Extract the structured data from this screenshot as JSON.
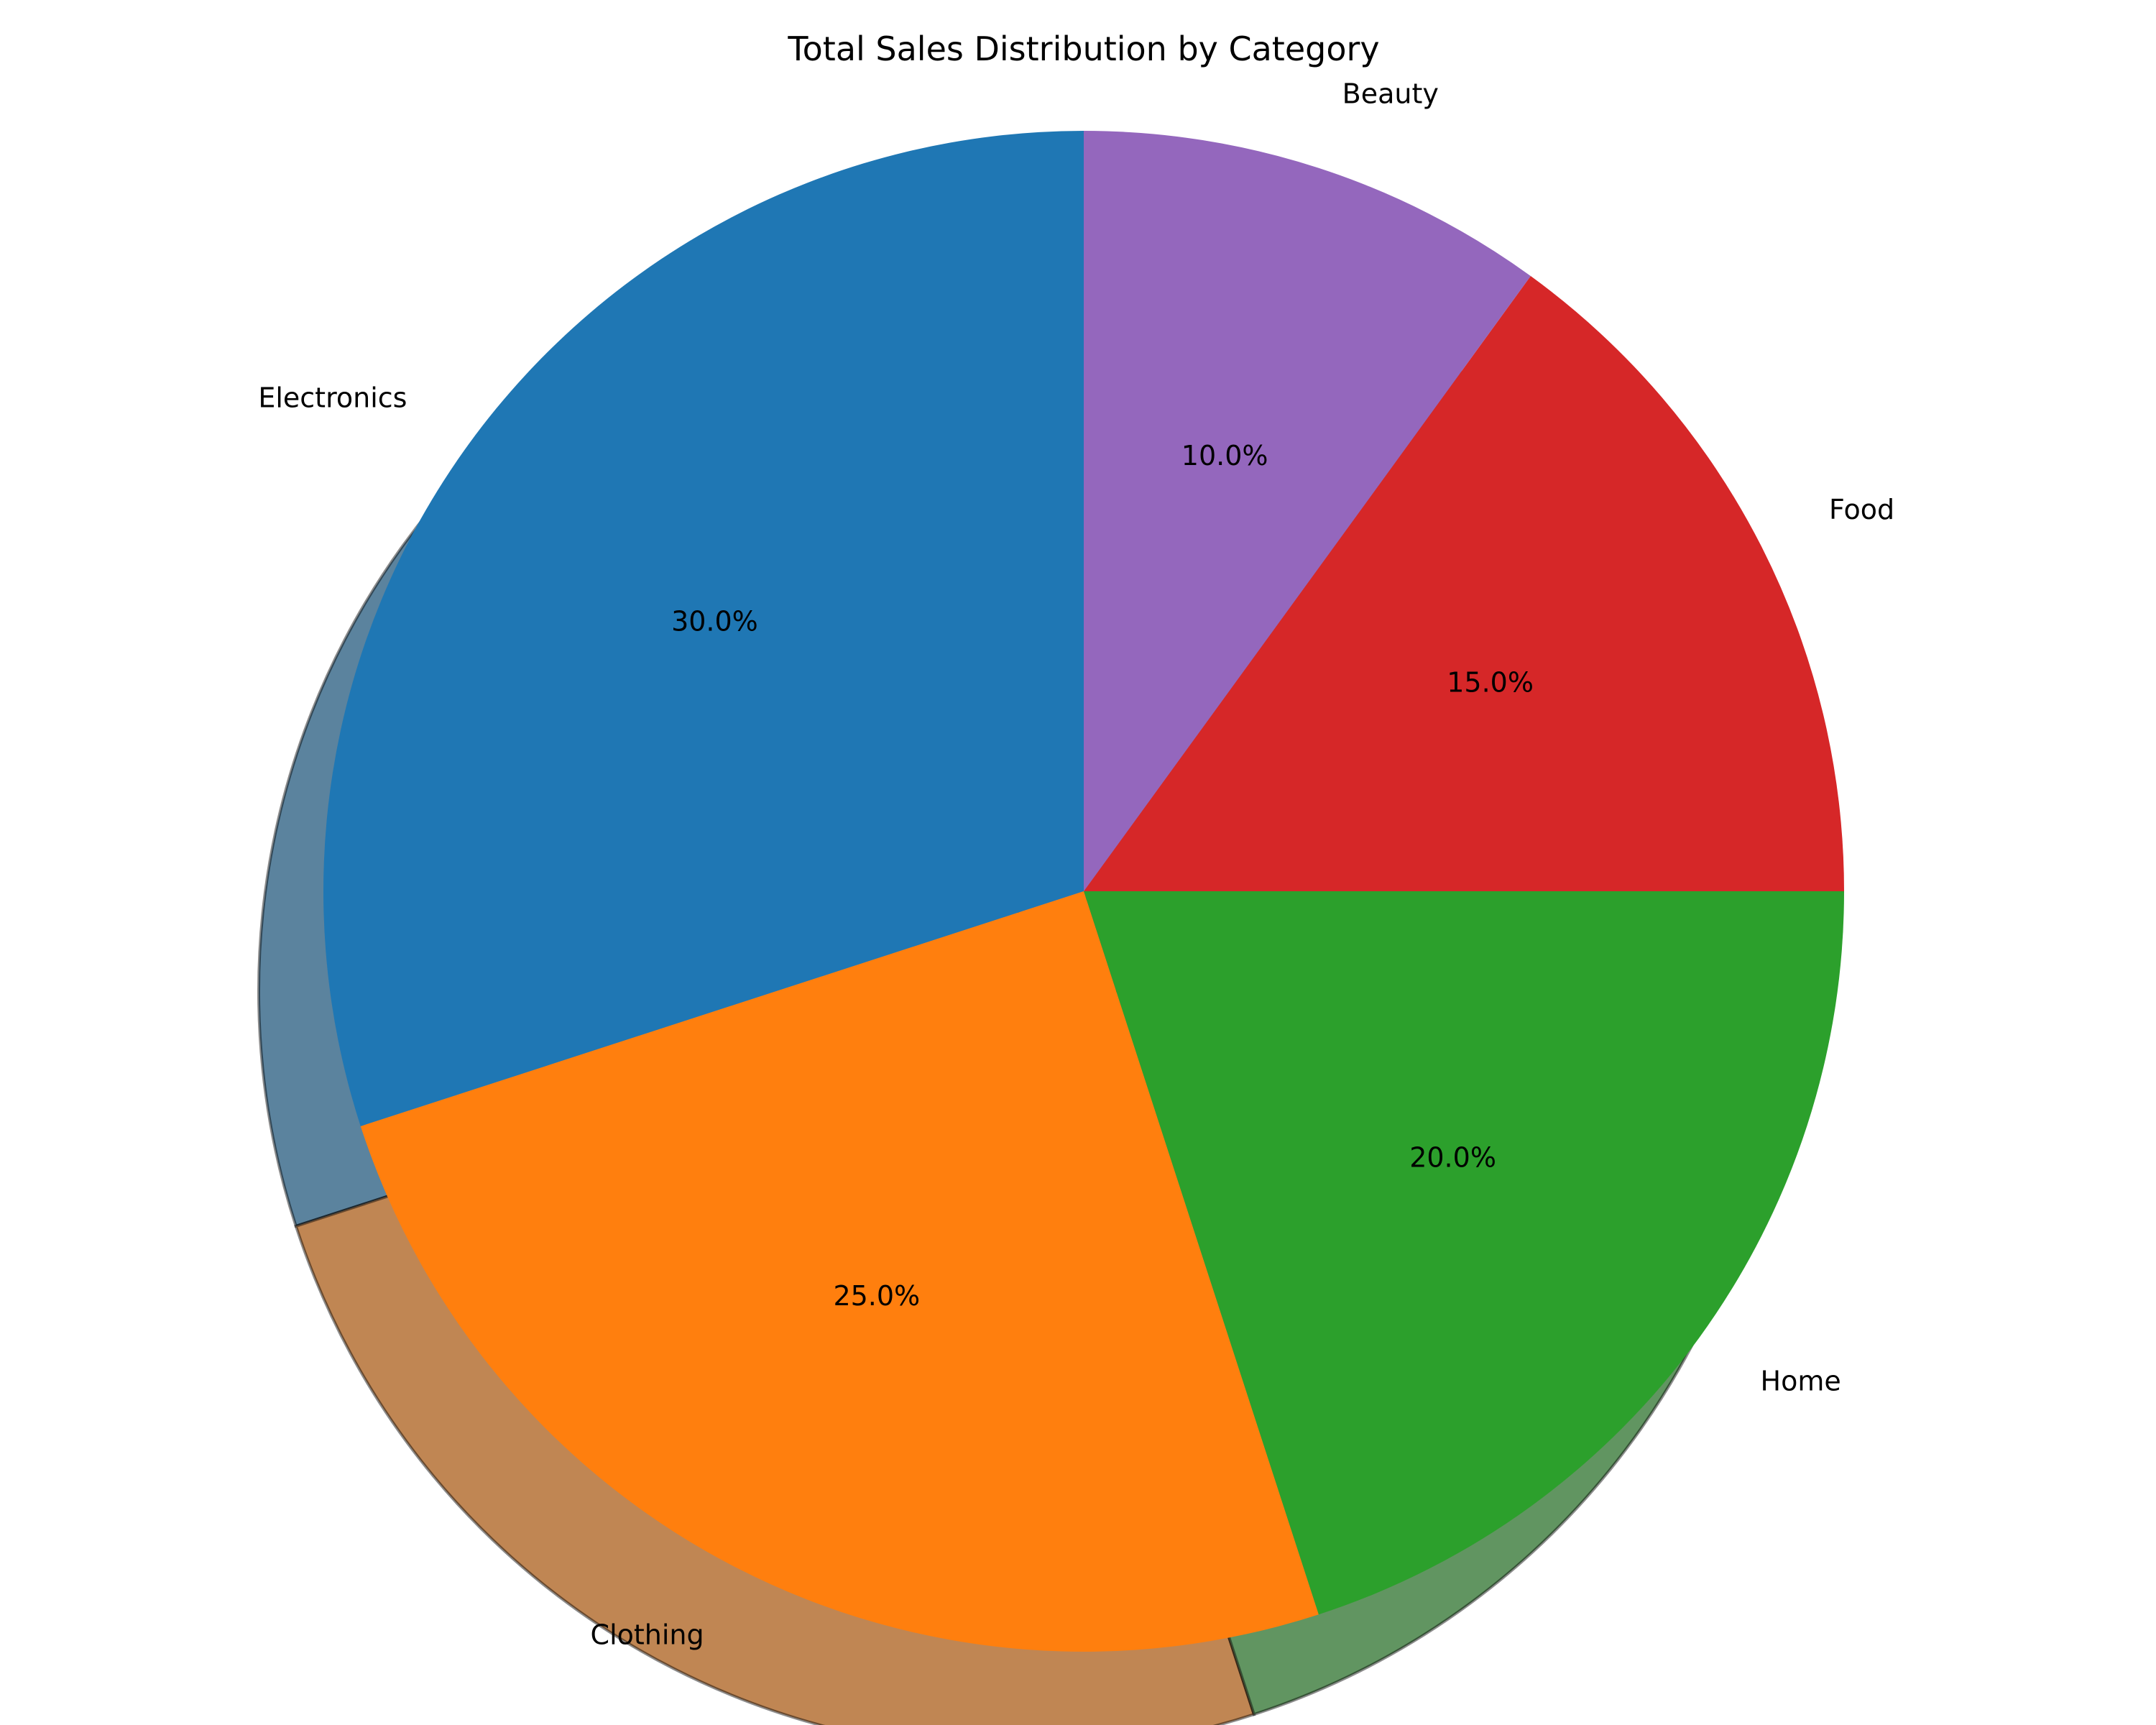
{
  "chart_data": {
    "type": "pie",
    "title": "Total Sales Distribution by Category",
    "categories": [
      "Electronics",
      "Clothing",
      "Home",
      "Food",
      "Beauty"
    ],
    "values": [
      30,
      25,
      20,
      15,
      10
    ],
    "percent_labels": [
      "30.0%",
      "25.0%",
      "20.0%",
      "15.0%",
      "10.0%"
    ],
    "colors": [
      "#1f77b4",
      "#ff7f0e",
      "#2ca02c",
      "#d62728",
      "#9467bd"
    ],
    "start_angle_deg": 90,
    "direction": "counterclockwise",
    "shadow": true,
    "legend": "none"
  }
}
